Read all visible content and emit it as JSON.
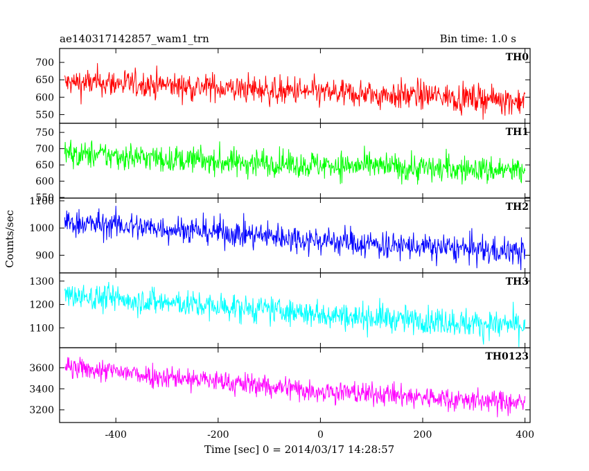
{
  "figure": {
    "title": "ae140317142857_wam1_trn",
    "bin_time": "Bin time: 1.0 s",
    "ylabel": "Counts/sec",
    "xlabel": "Time [sec] 0 = 2014/03/17 14:28:57"
  },
  "chart_data": {
    "type": "line",
    "x_range": [
      -510,
      410
    ],
    "x_ticks": [
      -400,
      -200,
      0,
      200,
      400
    ],
    "x_step": 1,
    "grid": false,
    "panels": [
      {
        "name": "TH0",
        "color": "#ff0000",
        "ylim": [
          525,
          740
        ],
        "y_ticks": [
          550,
          600,
          650,
          700
        ],
        "trend": [
          [
            -500,
            640
          ],
          [
            -400,
            640
          ],
          [
            -200,
            628
          ],
          [
            0,
            612
          ],
          [
            200,
            605
          ],
          [
            400,
            590
          ]
        ],
        "noise": 26
      },
      {
        "name": "TH1",
        "color": "#00ff00",
        "ylim": [
          548,
          778
        ],
        "y_ticks": [
          550,
          600,
          650,
          700,
          750
        ],
        "trend": [
          [
            -500,
            685
          ],
          [
            -400,
            678
          ],
          [
            -200,
            660
          ],
          [
            0,
            650
          ],
          [
            200,
            640
          ],
          [
            400,
            632
          ]
        ],
        "noise": 27
      },
      {
        "name": "TH2",
        "color": "#0000ff",
        "ylim": [
          835,
          1110
        ],
        "y_ticks": [
          900,
          1000,
          1100
        ],
        "trend": [
          [
            -500,
            1020
          ],
          [
            -400,
            1010
          ],
          [
            -200,
            985
          ],
          [
            0,
            955
          ],
          [
            200,
            930
          ],
          [
            400,
            912
          ]
        ],
        "noise": 32
      },
      {
        "name": "TH3",
        "color": "#00ffff",
        "ylim": [
          1015,
          1335
        ],
        "y_ticks": [
          1100,
          1200,
          1300
        ],
        "trend": [
          [
            -500,
            1240
          ],
          [
            -400,
            1225
          ],
          [
            -200,
            1190
          ],
          [
            0,
            1160
          ],
          [
            200,
            1130
          ],
          [
            400,
            1110
          ]
        ],
        "noise": 38
      },
      {
        "name": "TH0123",
        "color": "#ff00ff",
        "ylim": [
          3080,
          3790
        ],
        "y_ticks": [
          3200,
          3400,
          3600
        ],
        "trend": [
          [
            -500,
            3600
          ],
          [
            -400,
            3560
          ],
          [
            -200,
            3470
          ],
          [
            0,
            3380
          ],
          [
            200,
            3320
          ],
          [
            400,
            3260
          ]
        ],
        "noise": 70
      }
    ]
  }
}
